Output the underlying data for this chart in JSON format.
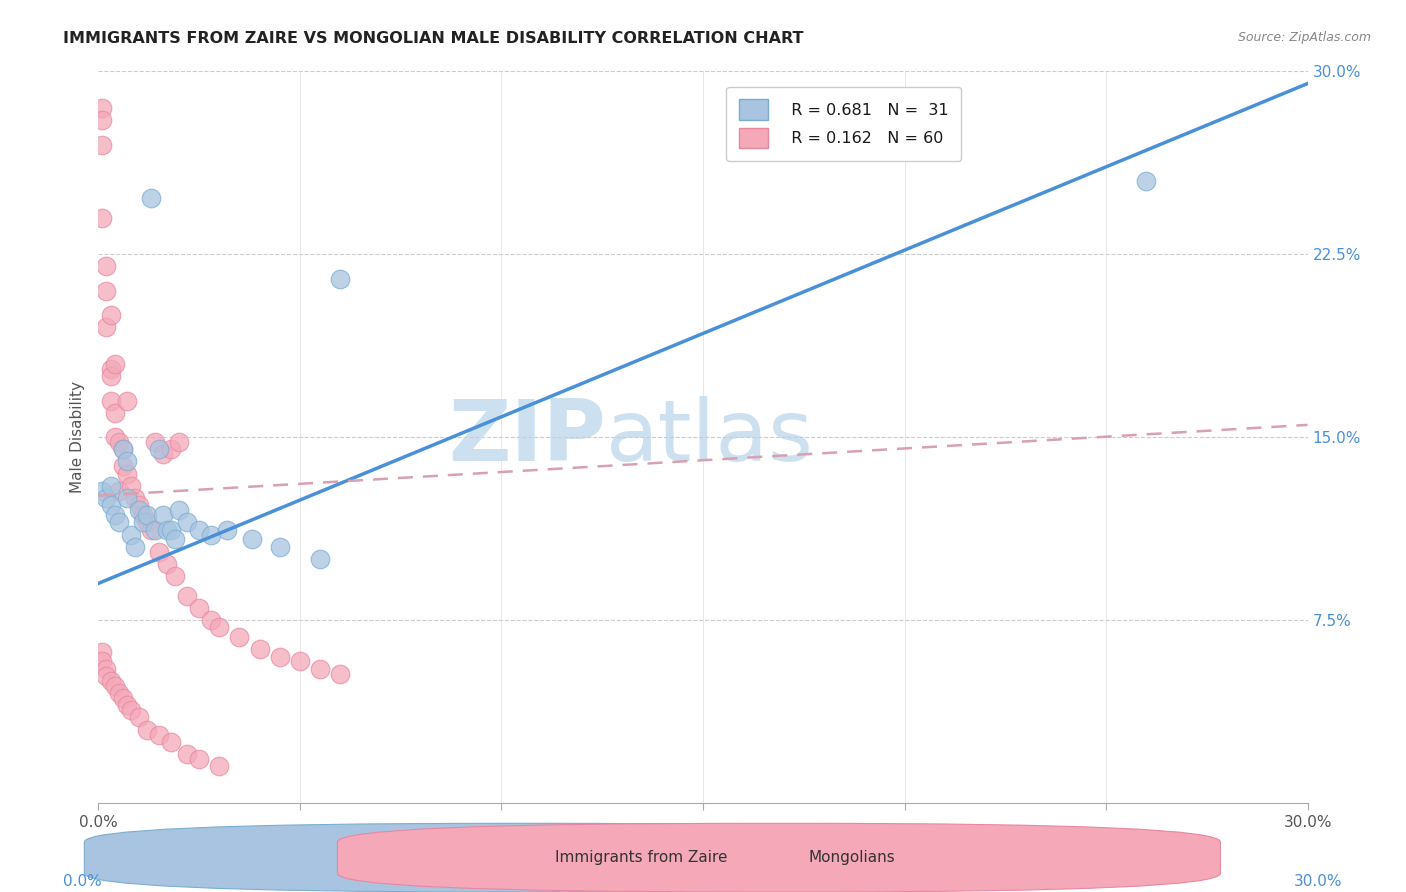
{
  "title": "IMMIGRANTS FROM ZAIRE VS MONGOLIAN MALE DISABILITY CORRELATION CHART",
  "source": "Source: ZipAtlas.com",
  "ylabel": "Male Disability",
  "x_min": 0.0,
  "x_max": 0.3,
  "y_min": 0.0,
  "y_max": 0.3,
  "y_tick_positions_right": [
    0.0,
    0.075,
    0.15,
    0.225,
    0.3
  ],
  "y_tick_labels_right": [
    "",
    "7.5%",
    "15.0%",
    "22.5%",
    "30.0%"
  ],
  "x_tick_positions": [
    0.0,
    0.05,
    0.1,
    0.15,
    0.2,
    0.25,
    0.3
  ],
  "x_tick_labels": [
    "0.0%",
    "",
    "",
    "",
    "",
    "",
    "30.0%"
  ],
  "legend_r1": "R = 0.681",
  "legend_n1": "N =  31",
  "legend_r2": "R = 0.162",
  "legend_n2": "N = 60",
  "blue_fill": "#a8c4e0",
  "blue_edge": "#7aaed0",
  "pink_fill": "#f4a8b8",
  "pink_edge": "#e888a0",
  "line_blue_color": "#4a90d9",
  "line_pink_color": "#d8a0b0",
  "watermark_color": "#cce0f0",
  "grid_color": "#cccccc",
  "blue_line_x0": 0.0,
  "blue_line_y0": 0.09,
  "blue_line_x1": 0.3,
  "blue_line_y1": 0.295,
  "pink_line_x0": 0.0,
  "pink_line_y0": 0.126,
  "pink_line_x1": 0.3,
  "pink_line_y1": 0.155,
  "blue_scatter_x": [
    0.001,
    0.002,
    0.003,
    0.003,
    0.004,
    0.005,
    0.006,
    0.007,
    0.007,
    0.008,
    0.009,
    0.01,
    0.011,
    0.012,
    0.013,
    0.014,
    0.015,
    0.016,
    0.017,
    0.018,
    0.019,
    0.02,
    0.022,
    0.025,
    0.028,
    0.032,
    0.038,
    0.045,
    0.055,
    0.26,
    0.06
  ],
  "blue_scatter_y": [
    0.128,
    0.125,
    0.13,
    0.122,
    0.118,
    0.115,
    0.145,
    0.14,
    0.125,
    0.11,
    0.105,
    0.12,
    0.115,
    0.118,
    0.248,
    0.112,
    0.145,
    0.118,
    0.112,
    0.112,
    0.108,
    0.12,
    0.115,
    0.112,
    0.11,
    0.112,
    0.108,
    0.105,
    0.1,
    0.255,
    0.215
  ],
  "pink_scatter_x": [
    0.001,
    0.001,
    0.001,
    0.002,
    0.002,
    0.003,
    0.003,
    0.003,
    0.004,
    0.004,
    0.005,
    0.005,
    0.006,
    0.006,
    0.007,
    0.007,
    0.008,
    0.009,
    0.01,
    0.011,
    0.012,
    0.013,
    0.014,
    0.015,
    0.016,
    0.017,
    0.018,
    0.019,
    0.02,
    0.022,
    0.025,
    0.028,
    0.03,
    0.035,
    0.04,
    0.045,
    0.05,
    0.055,
    0.06,
    0.001,
    0.001,
    0.002,
    0.002,
    0.003,
    0.004,
    0.005,
    0.006,
    0.007,
    0.008,
    0.01,
    0.012,
    0.015,
    0.018,
    0.022,
    0.025,
    0.03,
    0.001,
    0.002,
    0.003,
    0.004
  ],
  "pink_scatter_y": [
    0.285,
    0.28,
    0.27,
    0.21,
    0.195,
    0.178,
    0.175,
    0.165,
    0.16,
    0.15,
    0.148,
    0.128,
    0.145,
    0.138,
    0.135,
    0.165,
    0.13,
    0.125,
    0.122,
    0.118,
    0.115,
    0.112,
    0.148,
    0.103,
    0.143,
    0.098,
    0.145,
    0.093,
    0.148,
    0.085,
    0.08,
    0.075,
    0.072,
    0.068,
    0.063,
    0.06,
    0.058,
    0.055,
    0.053,
    0.062,
    0.058,
    0.055,
    0.052,
    0.05,
    0.048,
    0.045,
    0.043,
    0.04,
    0.038,
    0.035,
    0.03,
    0.028,
    0.025,
    0.02,
    0.018,
    0.015,
    0.24,
    0.22,
    0.2,
    0.18
  ]
}
